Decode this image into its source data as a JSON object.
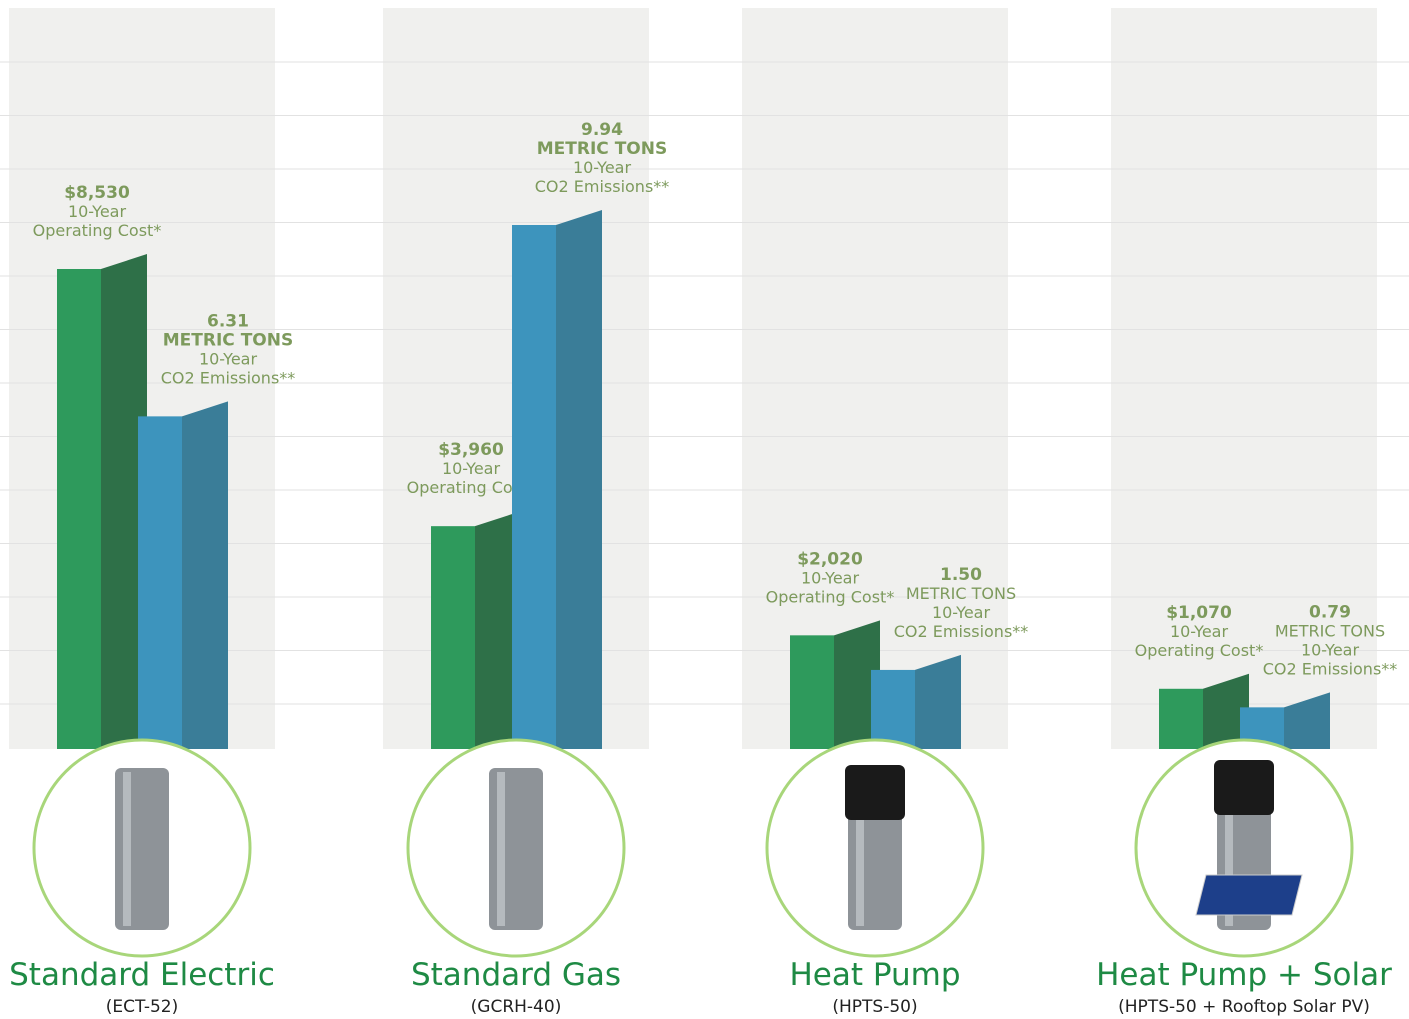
{
  "chart_data": {
    "type": "bar3d",
    "categories": [
      "Standard Electric",
      "Standard Gas",
      "Heat Pump",
      "Heat Pump + Solar"
    ],
    "models": [
      "(ECT-52)",
      "(GCRH-40)",
      "(HPTS-50)",
      "(HPTS-50 + Rooftop Solar PV)"
    ],
    "series": [
      {
        "color": "#2e9a5c",
        "side_color": "#2e7048",
        "label_lines": [
          "10-Year",
          "Operating Cost*"
        ],
        "values": [
          8530,
          3960,
          2020,
          1070
        ],
        "value_labels": [
          "$8,530",
          "$3,960",
          "$2,020",
          "$1,070"
        ]
      },
      {
        "color": "#3d94bd",
        "side_color": "#3a7d98",
        "label_lines": [
          "METRIC TONS",
          "10-Year",
          "CO2 Emissions**"
        ],
        "values": [
          6.31,
          9.94,
          1.5,
          0.79
        ],
        "value_labels": [
          "6.31",
          "9.94",
          "1.50",
          "0.79"
        ]
      }
    ]
  }
}
